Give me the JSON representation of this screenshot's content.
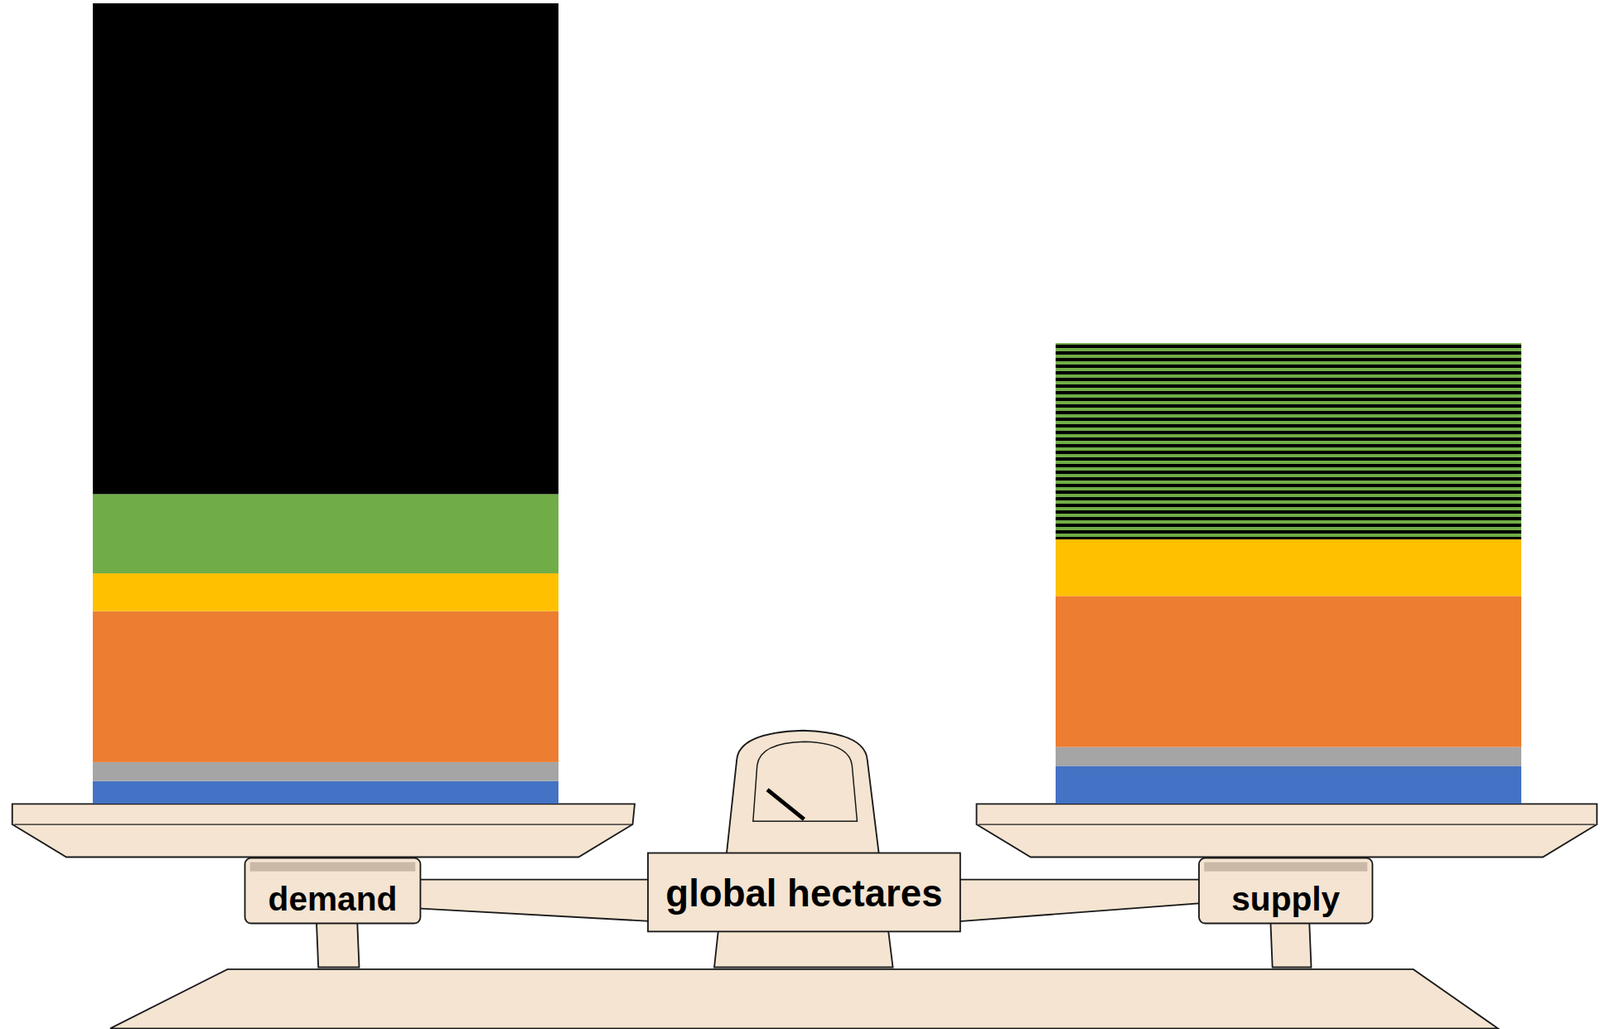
{
  "chart_data": {
    "type": "bar",
    "stacked": true,
    "title": "global hectares",
    "categories": [
      "demand",
      "supply"
    ],
    "series": [
      {
        "color": "#4472c4",
        "values": [
          0.6,
          1.0
        ]
      },
      {
        "color": "#a5a5a5",
        "values": [
          0.5,
          0.5
        ]
      },
      {
        "color": "#ed7d31",
        "values": [
          4.0,
          4.0
        ]
      },
      {
        "color": "#ffc000",
        "values": [
          1.0,
          1.5
        ]
      },
      {
        "color": "#70ad47",
        "values": [
          2.1,
          null
        ]
      },
      {
        "color": "#000000",
        "values": [
          13.0,
          null
        ]
      },
      {
        "color": "#70ad47",
        "line_style": "striped",
        "values": [
          null,
          5.2
        ]
      }
    ],
    "ylim": [
      0,
      21.2
    ],
    "tick_labels": false
  }
}
